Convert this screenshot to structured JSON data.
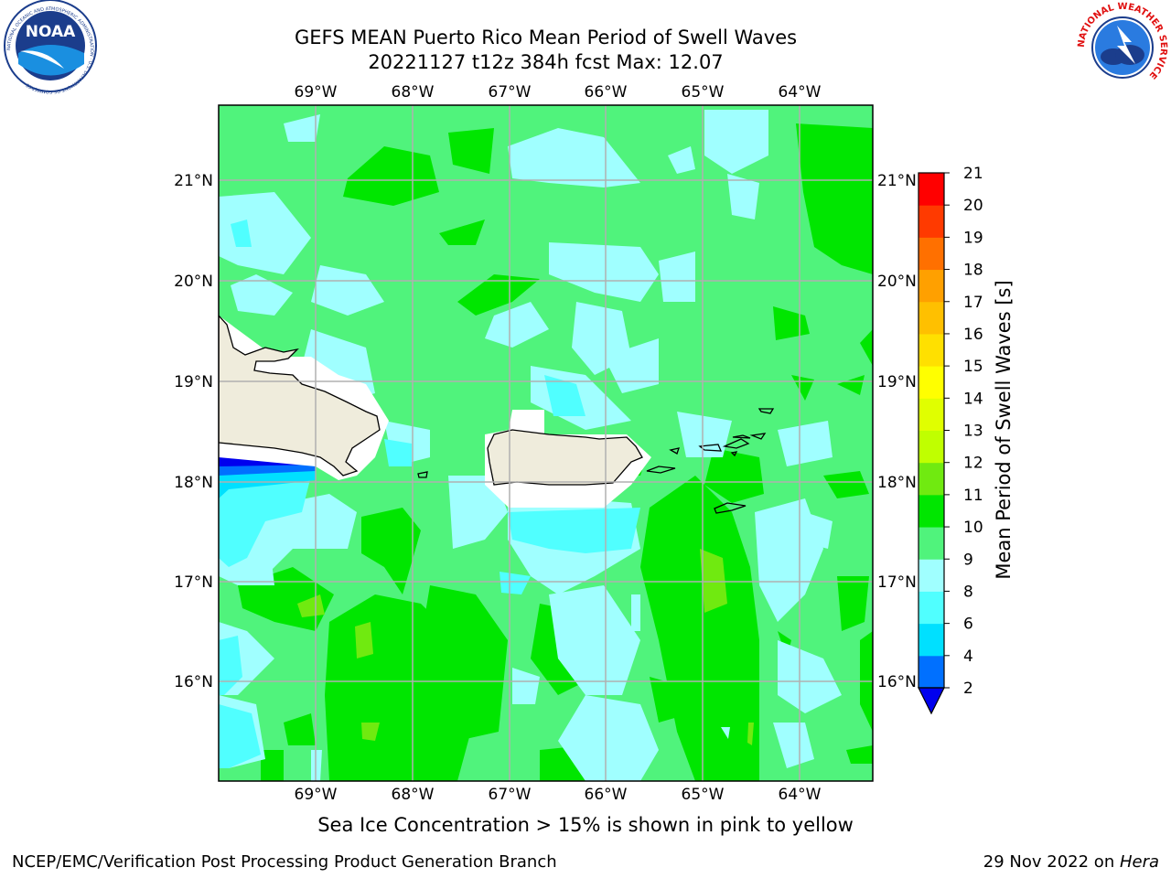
{
  "header": {
    "title_line1": "GEFS MEAN Puerto Rico Mean Period of Swell Waves",
    "title_line2": "20221127 t12z 384h fcst   Max: 12.07"
  },
  "map": {
    "lon_ticks": [
      "69°W",
      "68°W",
      "67°W",
      "66°W",
      "65°W",
      "64°W"
    ],
    "lat_ticks": [
      "21°N",
      "20°N",
      "19°N",
      "18°N",
      "17°N",
      "16°N"
    ],
    "colors": {
      "ocean_9_10": "#50f37c",
      "ocean_10_11": "#00e600",
      "ocean_8_9": "#a0ffff",
      "ocean_6_8": "#50ffff",
      "land": "#efecdc",
      "grid": "#b0b0b0"
    }
  },
  "colorbar": {
    "label": "Mean Period of Swell Waves [s]",
    "levels": [
      "2",
      "4",
      "6",
      "8",
      "9",
      "10",
      "11",
      "12",
      "13",
      "14",
      "15",
      "16",
      "17",
      "18",
      "19",
      "20",
      "21"
    ],
    "colors": [
      "#0020ff",
      "#0070ff",
      "#00e0ff",
      "#50ffff",
      "#a0ffff",
      "#50f37c",
      "#00e600",
      "#70ea10",
      "#c0ff00",
      "#e0ff00",
      "#ffff00",
      "#ffe000",
      "#ffc000",
      "#ffa000",
      "#ff7000",
      "#ff3a00",
      "#ff0000"
    ],
    "under_color": "#0000ee"
  },
  "footer": {
    "note": "Sea Ice Concentration > 15% is shown in pink to yellow",
    "left": "NCEP/EMC/Verification Post Processing Product Generation Branch",
    "date": "29 Nov 2022 on ",
    "machine": "Hera"
  },
  "logos": {
    "noaa_text": "NOAA",
    "noaa_ring": "NATIONAL OCEANIC AND ATMOSPHERIC ADMINISTRATION · U.S. DEPARTMENT OF COMMERCE",
    "nws_ring": "NATIONAL WEATHER SERVICE"
  }
}
